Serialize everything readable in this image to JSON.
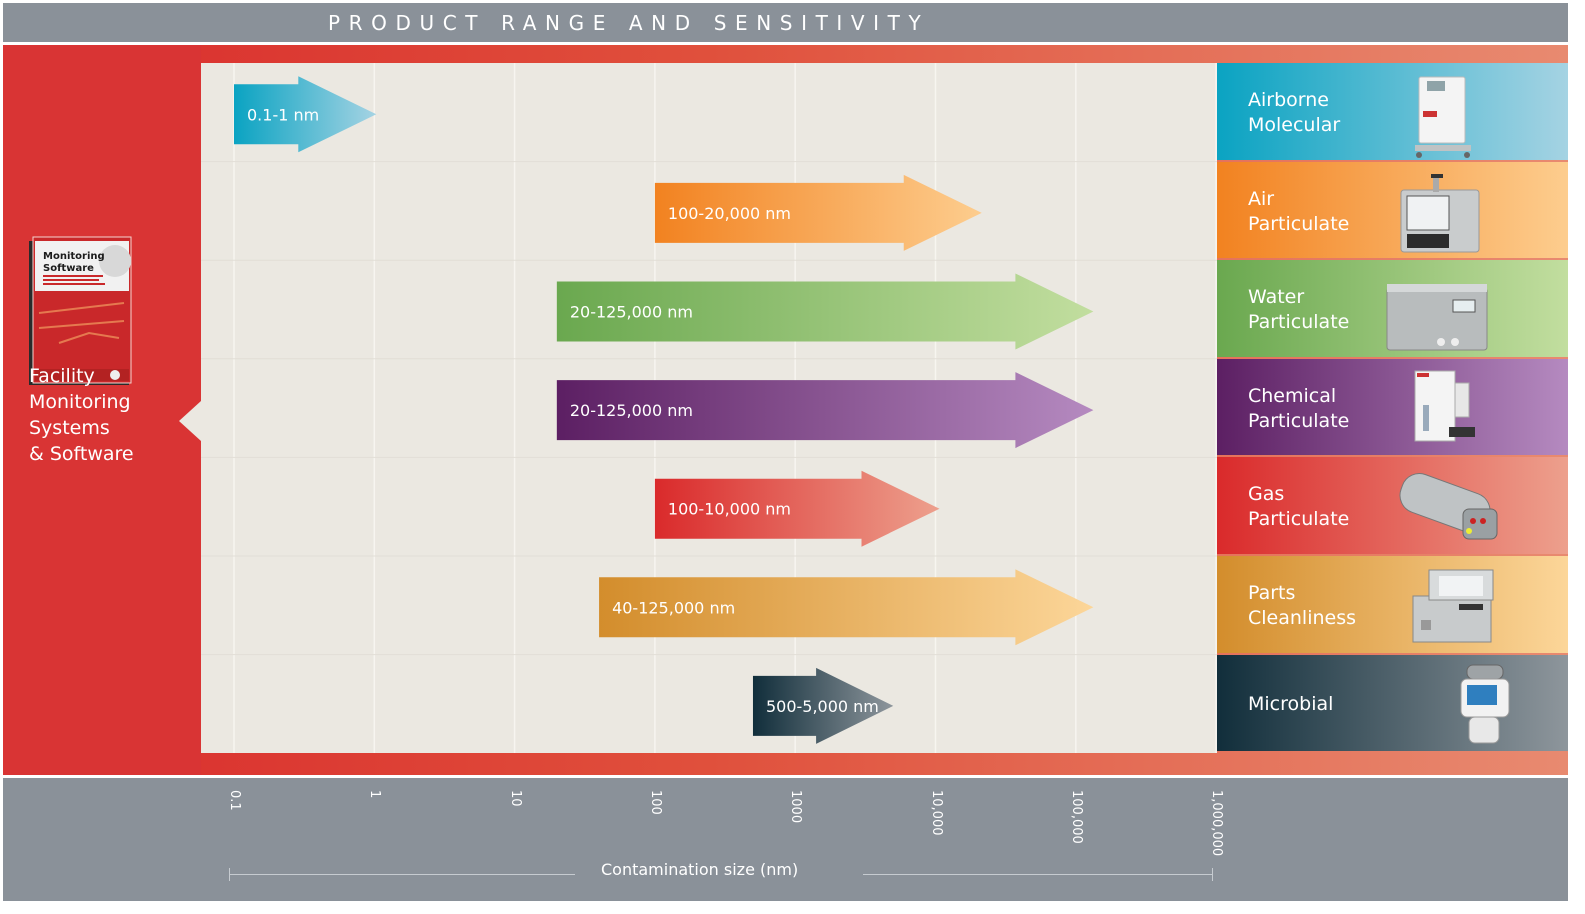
{
  "title": "PRODUCT RANGE AND SENSITIVITY",
  "sidebar": {
    "label_lines": [
      "Facility",
      "Monitoring",
      "Systems",
      "& Software"
    ],
    "product_box": {
      "title_lines": [
        "Monitoring",
        "Software"
      ]
    }
  },
  "chart_data": {
    "type": "bar",
    "subtype": "horizontal-range-arrows",
    "title": "PRODUCT RANGE AND SENSITIVITY",
    "xlabel": "Contamination size (nm)",
    "ylabel": "",
    "xscale": "log",
    "xlim": [
      0.1,
      1000000
    ],
    "grid": true,
    "x_ticks": [
      0.1,
      1,
      10,
      100,
      1000,
      10000,
      100000,
      1000000
    ],
    "x_tick_labels": [
      "0.1",
      "1",
      "10",
      "100",
      "1000",
      "10,000",
      "100,000",
      "1,000,000"
    ],
    "categories": [
      "Airborne Molecular",
      "Air Particulate",
      "Water Particulate",
      "Chemical Particulate",
      "Gas Particulate",
      "Parts Cleanliness",
      "Microbial"
    ],
    "series": [
      {
        "name": "Airborne Molecular",
        "label_lines": [
          "Airborne",
          "Molecular"
        ],
        "min": 0.1,
        "max": 1,
        "range_label": "0.1-1 nm",
        "color_start": "#0aa3c2",
        "color_end": "#a5d3e3"
      },
      {
        "name": "Air Particulate",
        "label_lines": [
          "Air",
          "Particulate"
        ],
        "min": 100,
        "max": 20000,
        "range_label": "100-20,000 nm",
        "color_start": "#f28220",
        "color_end": "#fdcd8e"
      },
      {
        "name": "Water Particulate",
        "label_lines": [
          "Water",
          "Particulate"
        ],
        "min": 20,
        "max": 125000,
        "range_label": "20-125,000 nm",
        "color_start": "#6aa84f",
        "color_end": "#c2de9f"
      },
      {
        "name": "Chemical Particulate",
        "label_lines": [
          "Chemical",
          "Particulate"
        ],
        "min": 20,
        "max": 125000,
        "range_label": "20-125,000 nm",
        "color_start": "#5c1f63",
        "color_end": "#b58ac0"
      },
      {
        "name": "Gas Particulate",
        "label_lines": [
          "Gas",
          "Particulate"
        ],
        "min": 100,
        "max": 10000,
        "range_label": "100-10,000 nm",
        "color_start": "#da2a2b",
        "color_end": "#eda08d"
      },
      {
        "name": "Parts Cleanliness",
        "label_lines": [
          "Parts",
          "Cleanliness"
        ],
        "min": 40,
        "max": 125000,
        "range_label": "40-125,000 nm",
        "color_start": "#d38d2c",
        "color_end": "#fcd699"
      },
      {
        "name": "Microbial",
        "label_lines": [
          "Microbial"
        ],
        "min": 500,
        "max": 5000,
        "range_label": "500-5,000 nm",
        "color_start": "#112e3b",
        "color_end": "#8e969c"
      }
    ]
  }
}
